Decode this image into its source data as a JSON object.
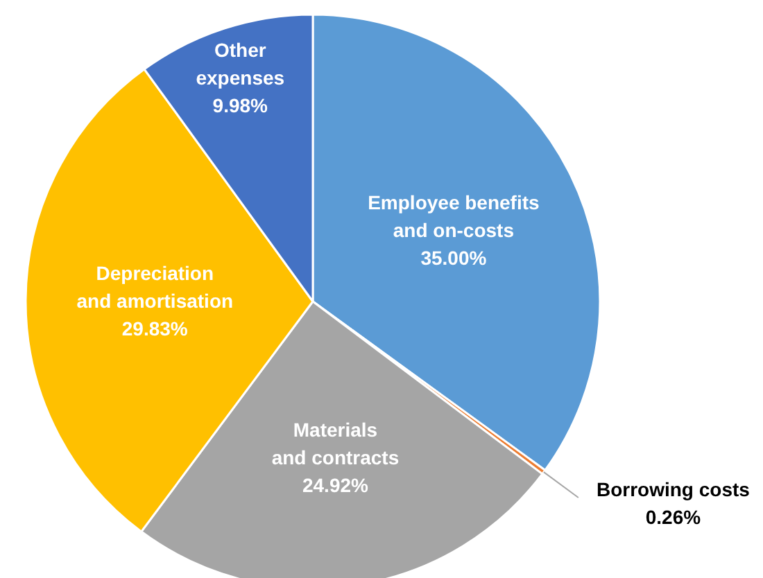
{
  "chart_data": {
    "type": "pie",
    "categories": [
      "Employee benefits and on-costs",
      "Borrowing costs",
      "Materials and contracts",
      "Depreciation and amortisation",
      "Other expenses"
    ],
    "values": [
      35.0,
      0.26,
      24.92,
      29.83,
      9.98
    ],
    "colors": [
      "#5b9bd5",
      "#ed7d31",
      "#a5a5a5",
      "#ffc000",
      "#4472c4"
    ],
    "value_labels": [
      "35.00%",
      "0.26%",
      "24.92%",
      "29.83%",
      "9.98%"
    ]
  }
}
